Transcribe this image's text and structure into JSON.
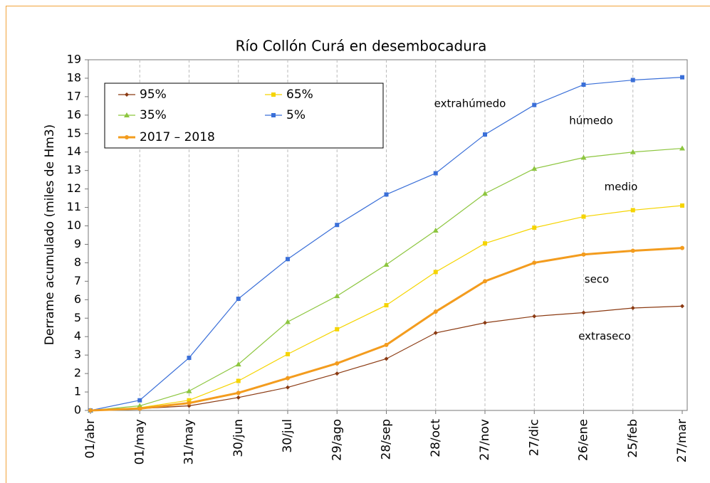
{
  "chart_data": {
    "type": "line",
    "title": "Río Collón Curá en desembocadura",
    "y_label": "Derrame acumulado (miles de Hm3)",
    "categories": [
      "01/abr",
      "01/may",
      "31/may",
      "30/jun",
      "30/jul",
      "29/ago",
      "28/sep",
      "28/oct",
      "27/nov",
      "27/dic",
      "26/ene",
      "25/feb",
      "27/mar"
    ],
    "series": [
      {
        "name": "95%",
        "color": "#8b3a12",
        "marker": "diamond",
        "values": [
          0,
          0.1,
          0.25,
          0.7,
          1.25,
          2.0,
          2.8,
          4.2,
          4.75,
          5.1,
          5.3,
          5.55,
          5.65
        ]
      },
      {
        "name": "65%",
        "color": "#f5d400",
        "marker": "square",
        "values": [
          0,
          0.15,
          0.55,
          1.6,
          3.05,
          4.4,
          5.7,
          7.5,
          9.05,
          9.9,
          10.5,
          10.85,
          11.1
        ]
      },
      {
        "name": "35%",
        "color": "#8dc63f",
        "marker": "triangle",
        "values": [
          0,
          0.25,
          1.05,
          2.5,
          4.8,
          6.2,
          7.9,
          9.75,
          11.75,
          13.1,
          13.7,
          14.0,
          14.2
        ]
      },
      {
        "name": "5%",
        "color": "#3a6fd8",
        "marker": "square",
        "values": [
          0,
          0.55,
          2.85,
          6.05,
          8.2,
          10.05,
          11.7,
          12.85,
          14.95,
          16.55,
          17.65,
          17.9,
          18.05
        ]
      },
      {
        "name": "2017 – 2018",
        "color": "#f39c1e",
        "marker": "circle",
        "values": [
          0,
          0.1,
          0.4,
          0.95,
          1.75,
          2.55,
          3.55,
          5.35,
          7.0,
          8.0,
          8.45,
          8.65,
          8.8
        ]
      }
    ],
    "annotations": [
      "extrahúmedo",
      "húmedo",
      "medio",
      "seco",
      "extraseco"
    ],
    "ylim": [
      0,
      19
    ],
    "yticks": [
      0,
      1,
      2,
      3,
      4,
      5,
      6,
      7,
      8,
      9,
      10,
      11,
      12,
      13,
      14,
      15,
      16,
      17,
      18,
      19
    ],
    "grid": "x",
    "legend": "upper left"
  }
}
